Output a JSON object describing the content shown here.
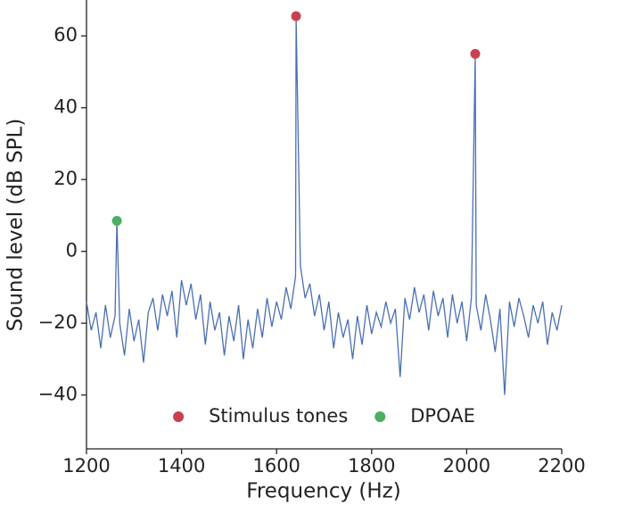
{
  "chart_data": {
    "type": "line",
    "xlabel": "Frequency (Hz)",
    "ylabel": "Sound level (dB SPL)",
    "xlim": [
      1200,
      2200
    ],
    "xticks": [
      1200,
      1400,
      1600,
      1800,
      2000,
      2200
    ],
    "ylim": [
      -55,
      70
    ],
    "yticks": [
      {
        "value": -40,
        "label": "−40"
      },
      {
        "value": -20,
        "label": "−20"
      },
      0,
      20,
      40,
      60
    ],
    "legend": "lower center",
    "series": [
      {
        "type": "line",
        "color": "#4a6fb3",
        "x": [
          1200,
          1210,
          1220,
          1230,
          1240,
          1250,
          1260,
          1264,
          1270,
          1280,
          1290,
          1300,
          1310,
          1320,
          1330,
          1340,
          1350,
          1360,
          1370,
          1380,
          1390,
          1400,
          1410,
          1420,
          1430,
          1440,
          1450,
          1460,
          1470,
          1480,
          1490,
          1500,
          1510,
          1520,
          1530,
          1540,
          1550,
          1560,
          1570,
          1580,
          1590,
          1600,
          1610,
          1620,
          1630,
          1640,
          1641,
          1650,
          1660,
          1670,
          1680,
          1690,
          1700,
          1710,
          1720,
          1730,
          1740,
          1750,
          1760,
          1770,
          1780,
          1790,
          1800,
          1810,
          1820,
          1830,
          1840,
          1850,
          1860,
          1870,
          1880,
          1890,
          1900,
          1910,
          1920,
          1930,
          1940,
          1950,
          1960,
          1970,
          1980,
          1990,
          2000,
          2010,
          2018,
          2020,
          2030,
          2040,
          2050,
          2060,
          2070,
          2080,
          2090,
          2100,
          2110,
          2120,
          2130,
          2140,
          2150,
          2160,
          2170,
          2180,
          2190,
          2200
        ],
        "values": [
          -14,
          -22,
          -17,
          -27,
          -15,
          -24,
          -18,
          8.5,
          -20,
          -29,
          -16,
          -25,
          -19,
          -31,
          -17,
          -13,
          -22,
          -12,
          -18,
          -11,
          -24,
          -8,
          -15,
          -9,
          -19,
          -12,
          -26,
          -14,
          -22,
          -17,
          -29,
          -18,
          -25,
          -15,
          -30,
          -19,
          -27,
          -16,
          -24,
          -13,
          -21,
          -14,
          -19,
          -10,
          -16,
          -7,
          65.5,
          -4,
          -13,
          -9,
          -18,
          -12,
          -22,
          -14,
          -27,
          -17,
          -24,
          -19,
          -30,
          -18,
          -26,
          -15,
          -23,
          -17,
          -21,
          -14,
          -20,
          -16,
          -35,
          -13,
          -19,
          -10,
          -17,
          -12,
          -22,
          -11,
          -18,
          -13,
          -24,
          -12,
          -20,
          -14,
          -25,
          -13,
          55,
          -15,
          -22,
          -12,
          -19,
          -28,
          -16,
          -40,
          -14,
          -21,
          -13,
          -18,
          -24,
          -15,
          -20,
          -14,
          -26,
          -17,
          -22,
          -15
        ]
      },
      {
        "type": "scatter",
        "name": "Stimulus tones",
        "color": "#c9414f",
        "x": [
          1641,
          2018
        ],
        "values": [
          65.5,
          55
        ]
      },
      {
        "type": "scatter",
        "name": "DPOAE",
        "color": "#4caf63",
        "x": [
          1264
        ],
        "values": [
          8.5
        ]
      }
    ]
  }
}
